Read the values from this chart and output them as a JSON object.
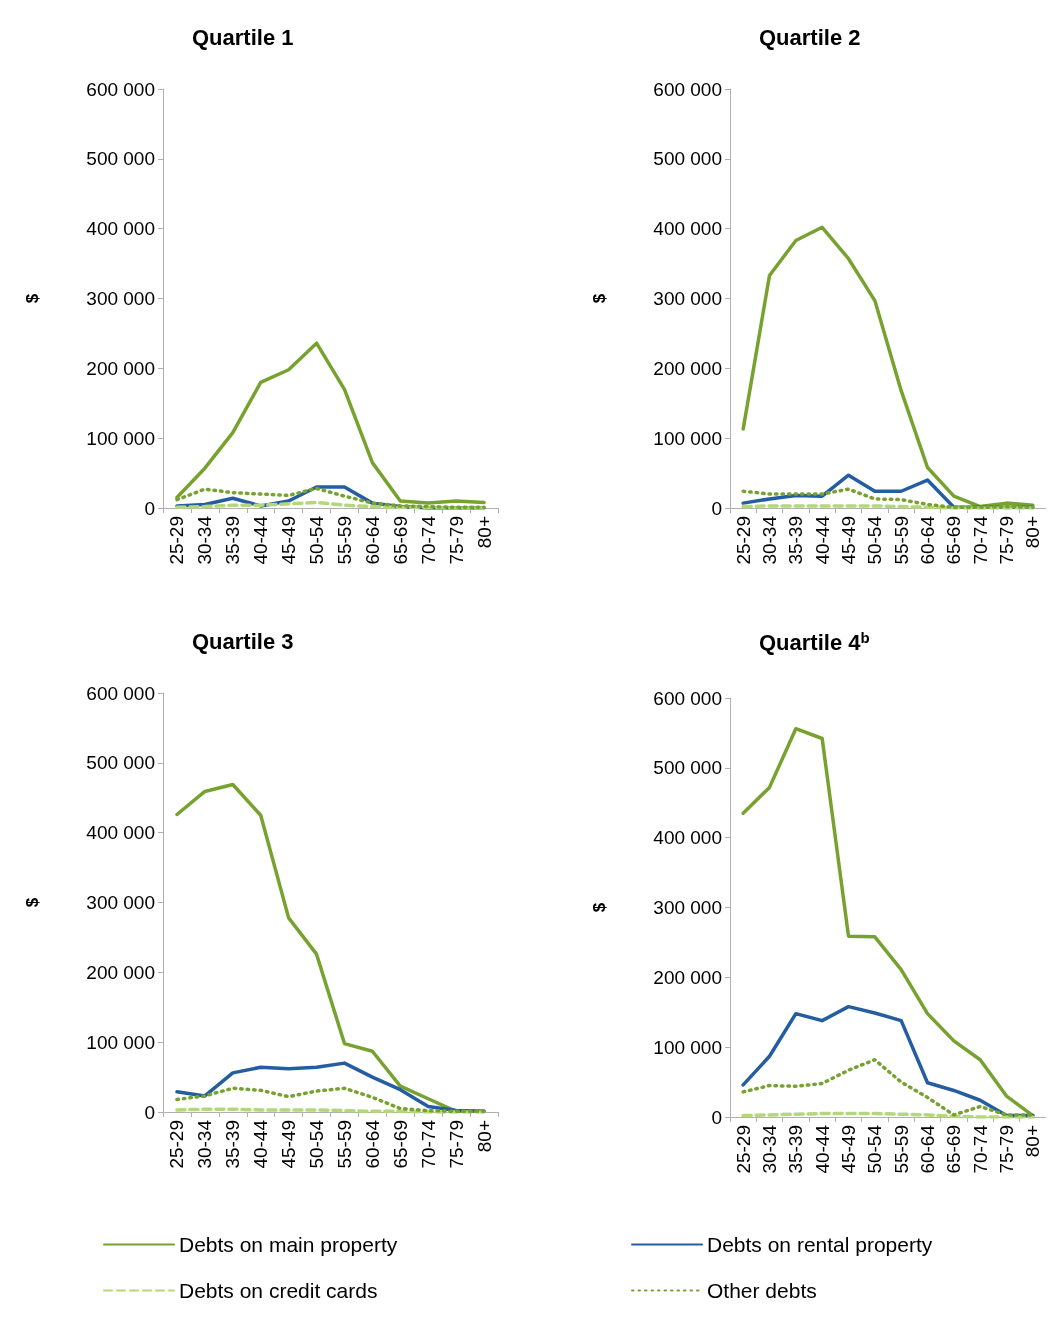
{
  "chart_data": [
    {
      "type": "line",
      "title": "Quartile 1",
      "ylabel": "$",
      "categories": [
        "25-29",
        "30-34",
        "35-39",
        "40-44",
        "45-49",
        "50-54",
        "55-59",
        "60-64",
        "65-69",
        "70-74",
        "75-79",
        "80+"
      ],
      "ylim": [
        0,
        600000
      ],
      "yticks": [
        0,
        100000,
        200000,
        300000,
        400000,
        500000,
        600000
      ],
      "grid": false,
      "marker": "none",
      "series": [
        {
          "color": "#77a22f",
          "line_style": "solid",
          "values": [
            15000,
            57000,
            108000,
            180000,
            198000,
            236000,
            170000,
            65000,
            10000,
            7000,
            10000,
            8000
          ]
        },
        {
          "color": "#245da0",
          "line_style": "solid",
          "values": [
            3000,
            5000,
            14000,
            3000,
            10000,
            30000,
            30000,
            7000,
            2000,
            0,
            0,
            0
          ]
        },
        {
          "color": "#b3d77a",
          "line_style": "dashed",
          "values": [
            1000,
            2000,
            4000,
            4000,
            6000,
            8000,
            4000,
            2000,
            1000,
            1000,
            0,
            0
          ]
        },
        {
          "color": "#77a22f",
          "line_style": "dotted",
          "values": [
            12000,
            27000,
            22000,
            20000,
            18000,
            28000,
            17000,
            7000,
            3000,
            2000,
            1000,
            1000
          ]
        }
      ]
    },
    {
      "type": "line",
      "title": "Quartile 2",
      "ylabel": "$",
      "categories": [
        "25-29",
        "30-34",
        "35-39",
        "40-44",
        "45-49",
        "50-54",
        "55-59",
        "60-64",
        "65-69",
        "70-74",
        "75-79",
        "80+"
      ],
      "ylim": [
        0,
        600000
      ],
      "yticks": [
        0,
        100000,
        200000,
        300000,
        400000,
        500000,
        600000
      ],
      "grid": false,
      "marker": "none",
      "series": [
        {
          "color": "#77a22f",
          "line_style": "solid",
          "values": [
            113000,
            333000,
            383000,
            402000,
            357000,
            297000,
            168000,
            58000,
            17000,
            2000,
            7000,
            4000
          ]
        },
        {
          "color": "#245da0",
          "line_style": "solid",
          "values": [
            7000,
            13000,
            18000,
            17000,
            47000,
            24000,
            24000,
            40000,
            1000,
            1000,
            1000,
            1000
          ]
        },
        {
          "color": "#b3d77a",
          "line_style": "dashed",
          "values": [
            2000,
            3000,
            3000,
            3000,
            3000,
            3000,
            2000,
            1000,
            0,
            0,
            0,
            0
          ]
        },
        {
          "color": "#77a22f",
          "line_style": "dotted",
          "values": [
            24000,
            20000,
            20000,
            20000,
            27000,
            13000,
            12000,
            5000,
            1000,
            1000,
            2000,
            1000
          ]
        }
      ]
    },
    {
      "type": "line",
      "title": "Quartile 3",
      "ylabel": "$",
      "categories": [
        "25-29",
        "30-34",
        "35-39",
        "40-44",
        "45-49",
        "50-54",
        "55-59",
        "60-64",
        "65-69",
        "70-74",
        "75-79",
        "80+"
      ],
      "ylim": [
        0,
        600000
      ],
      "yticks": [
        0,
        100000,
        200000,
        300000,
        400000,
        500000,
        600000
      ],
      "grid": false,
      "marker": "none",
      "series": [
        {
          "color": "#77a22f",
          "line_style": "solid",
          "values": [
            426000,
            459000,
            469000,
            425000,
            278000,
            226000,
            98000,
            87000,
            37000,
            19000,
            1000,
            1000
          ]
        },
        {
          "color": "#245da0",
          "line_style": "solid",
          "values": [
            29000,
            23000,
            56000,
            64000,
            62000,
            64000,
            70000,
            50000,
            32000,
            8000,
            2000,
            1000
          ]
        },
        {
          "color": "#b3d77a",
          "line_style": "dashed",
          "values": [
            3000,
            4000,
            4000,
            3000,
            3000,
            3000,
            2000,
            1000,
            1000,
            0,
            0,
            0
          ]
        },
        {
          "color": "#77a22f",
          "line_style": "dotted",
          "values": [
            18000,
            23000,
            34000,
            31000,
            22000,
            30000,
            34000,
            21000,
            5000,
            2000,
            1000,
            1000
          ]
        }
      ]
    },
    {
      "type": "line",
      "title": "Quartile 4$^{b}$",
      "ylabel": "$",
      "categories": [
        "25-29",
        "30-34",
        "35-39",
        "40-44",
        "45-49",
        "50-54",
        "55-59",
        "60-64",
        "65-69",
        "70-74",
        "75-79",
        "80+"
      ],
      "ylim": [
        0,
        600000
      ],
      "yticks": [
        0,
        100000,
        200000,
        300000,
        400000,
        500000,
        600000
      ],
      "grid": false,
      "legend": "bottom",
      "marker": "none",
      "series": [
        {
          "name": "Debts on main property",
          "color": "#77a22f",
          "line_style": "solid",
          "values": [
            435000,
            472000,
            556000,
            542000,
            259000,
            258000,
            211000,
            148000,
            109000,
            82000,
            30000,
            2000
          ]
        },
        {
          "name": "Debts on rental property",
          "color": "#245da0",
          "line_style": "solid",
          "values": [
            46000,
            87000,
            148000,
            138000,
            158000,
            149000,
            138000,
            49000,
            38000,
            24000,
            2000,
            2000
          ]
        },
        {
          "name": "Debts on credit cards",
          "color": "#b3d77a",
          "line_style": "dashed",
          "values": [
            2000,
            3000,
            4000,
            5000,
            5000,
            5000,
            4000,
            3000,
            1000,
            0,
            0,
            0
          ]
        },
        {
          "name": "Other debts",
          "color": "#77a22f",
          "line_style": "dotted",
          "values": [
            36000,
            45000,
            44000,
            48000,
            67000,
            82000,
            50000,
            28000,
            3000,
            15000,
            3000,
            3000
          ]
        }
      ]
    }
  ]
}
